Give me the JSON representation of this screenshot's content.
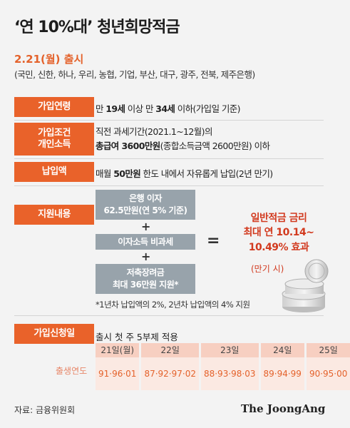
{
  "title": "‘연 10%대’ 청년희망적금",
  "launch": "2.21(월) 출시",
  "banks": "(국민, 신한, 하나, 우리, 농협, 기업, 부산, 대구, 광주, 전북, 제주은행)",
  "rows": {
    "age": {
      "label": "가입연령",
      "text_prefix": "만 ",
      "text_bold1": "19세",
      "text_mid": " 이상 만 ",
      "text_bold2": "34세",
      "text_suffix": " 이하(가입일 기준)"
    },
    "income": {
      "label_line1": "가입조건",
      "label_line2": "개인소득",
      "line1": "직전 과세기간(2021.1~12월)의",
      "line2_bold": "총급여 3600만원",
      "line2_rest": "(종합소득금액 2600만원) 이하"
    },
    "payment": {
      "label": "납입액",
      "text_prefix": "매월 ",
      "text_bold": "50만원",
      "text_suffix": " 한도 내에서 자유롭게 납입(2년 만기)"
    },
    "support": {
      "label": "지원내용",
      "box1_line1": "은행 이자",
      "box1_line2": "62.5만원(연 5% 기준)",
      "plus": "+",
      "box2": "이자소득 비과세",
      "box3_line1": "저축장려금",
      "box3_line2": "최대 36만원 지원*",
      "equals": "=",
      "result_line1": "일반적금 금리",
      "result_line2": "최대 연 10.14~",
      "result_line3": "10.49% 효과",
      "result_note": "(만기 시)",
      "footnote": "*1년차 납입액의 2%, 2년차 납입액의 4% 지원"
    },
    "apply": {
      "label": "가입신청일",
      "text": "출시 첫 주 5부제 적용",
      "birth_label": "출생연도",
      "days": [
        {
          "day": "21일(월)",
          "years": "91·96·01"
        },
        {
          "day": "22일",
          "years": "87·92·97·02"
        },
        {
          "day": "23일",
          "years": "88·93·98·03"
        },
        {
          "day": "24일",
          "years": "89·94·99"
        },
        {
          "day": "25일",
          "years": "90·95·00"
        }
      ]
    }
  },
  "source": "자료: 금융위원회",
  "logo": "The JoongAng",
  "colors": {
    "accent": "#e9622a",
    "result": "#d23a1f",
    "box_gray": "#98a3ab",
    "day_head": "#f7cfc1",
    "day_body": "#fbe9e2"
  }
}
